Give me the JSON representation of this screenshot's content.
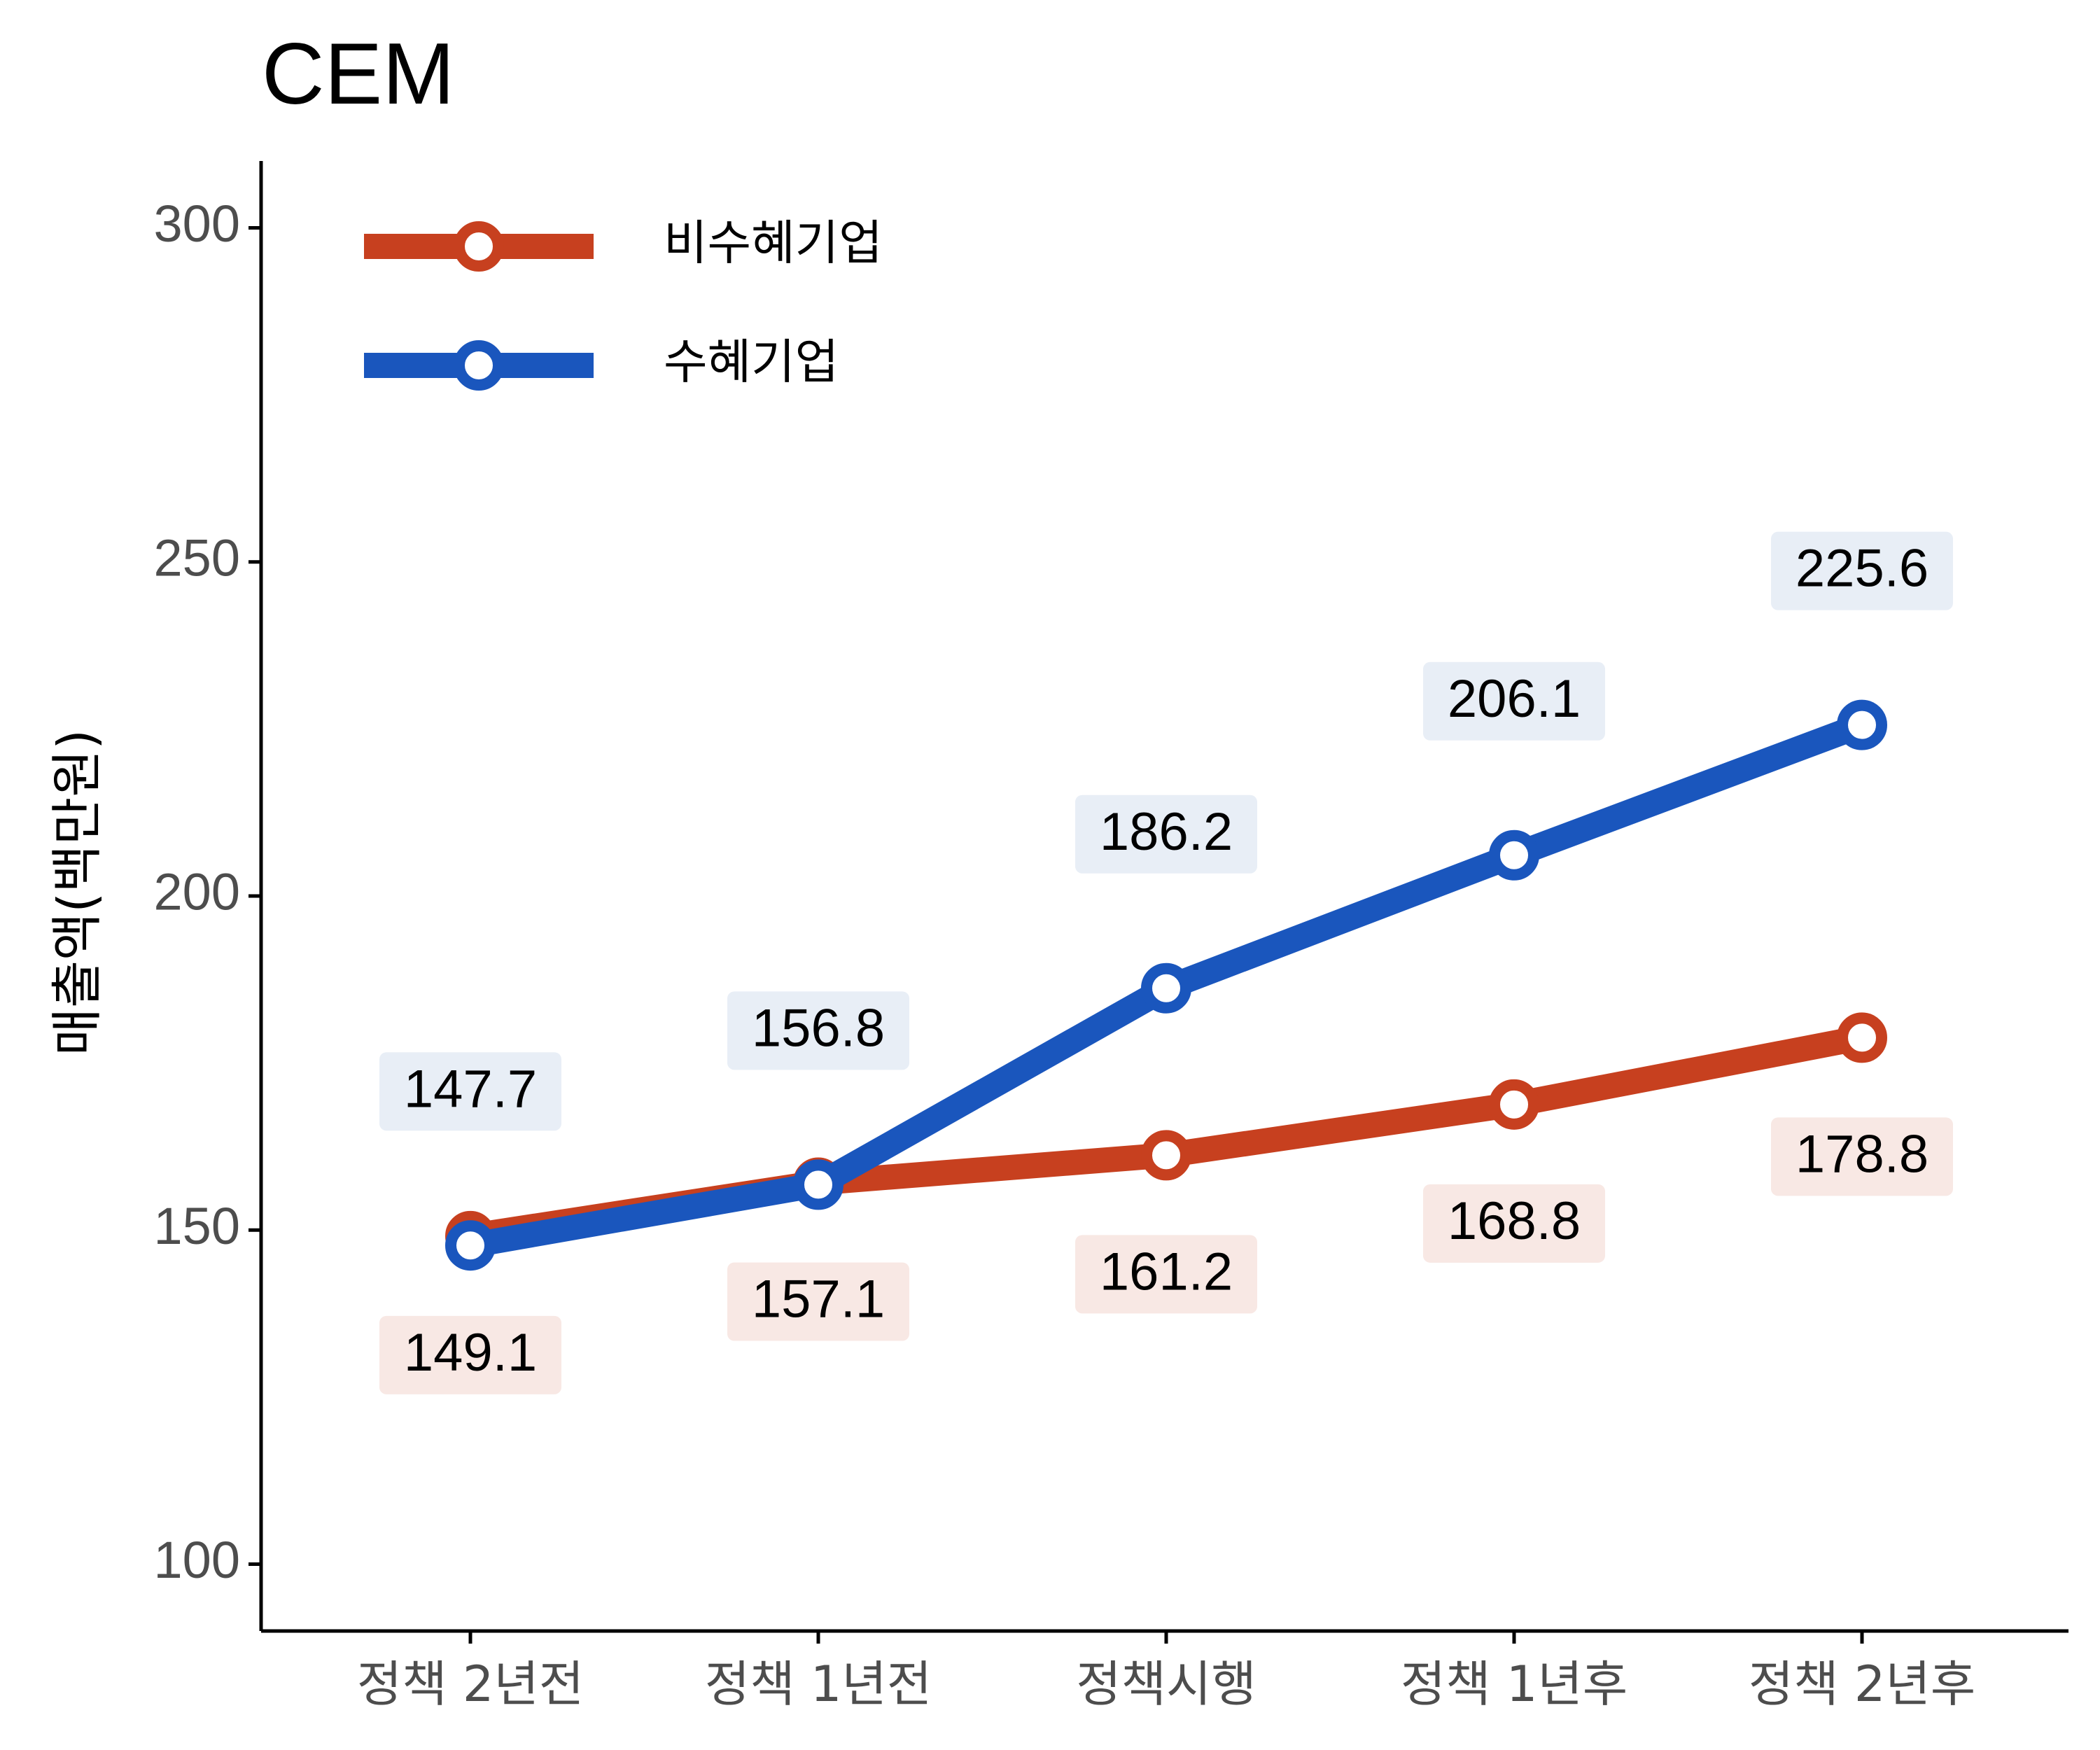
{
  "chart_data": {
    "type": "line",
    "title": "CEM",
    "xlabel": "",
    "ylabel": "매출액(백만원)",
    "ylim": [
      90,
      310
    ],
    "yticks": [
      100,
      150,
      200,
      250,
      300
    ],
    "categories": [
      "정책 2년전",
      "정책 1년전",
      "정책시행",
      "정책 1년후",
      "정책 2년후"
    ],
    "legend_position": "top-left",
    "grid": false,
    "series": [
      {
        "name": "비수혜기업",
        "color": "#C7401F",
        "label_bg": "#F8E8E4",
        "label_side": "below",
        "values": [
          149.1,
          157.1,
          161.2,
          168.8,
          178.8
        ],
        "labels": [
          "149.1",
          "157.1",
          "161.2",
          "168.8",
          "178.8"
        ]
      },
      {
        "name": "수혜기업",
        "color": "#1A56BD",
        "label_bg": "#E8EEF6",
        "label_side": "above",
        "values": [
          147.7,
          156.8,
          186.2,
          206.1,
          225.6
        ],
        "labels": [
          "147.7",
          "156.8",
          "186.2",
          "206.1",
          "225.6"
        ]
      }
    ]
  }
}
